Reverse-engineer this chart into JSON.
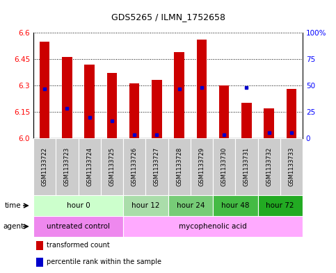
{
  "title": "GDS5265 / ILMN_1752658",
  "samples": [
    "GSM1133722",
    "GSM1133723",
    "GSM1133724",
    "GSM1133725",
    "GSM1133726",
    "GSM1133727",
    "GSM1133728",
    "GSM1133729",
    "GSM1133730",
    "GSM1133731",
    "GSM1133732",
    "GSM1133733"
  ],
  "bar_values": [
    6.55,
    6.46,
    6.42,
    6.37,
    6.31,
    6.33,
    6.49,
    6.56,
    6.3,
    6.2,
    6.17,
    6.28
  ],
  "blue_values": [
    6.28,
    6.17,
    6.12,
    6.1,
    6.02,
    6.02,
    6.28,
    6.29,
    6.02,
    6.29,
    6.03,
    6.03
  ],
  "ymin": 6.0,
  "ymax": 6.6,
  "yticks": [
    6.0,
    6.15,
    6.3,
    6.45,
    6.6
  ],
  "right_yticks": [
    0,
    25,
    50,
    75,
    100
  ],
  "right_yticklabels": [
    "0",
    "25",
    "50",
    "75",
    "100%"
  ],
  "bar_color": "#cc0000",
  "blue_color": "#0000cc",
  "bar_width": 0.45,
  "time_groups": [
    {
      "label": "hour 0",
      "start": 0,
      "end": 4,
      "color": "#ccffcc"
    },
    {
      "label": "hour 12",
      "start": 4,
      "end": 6,
      "color": "#aaddaa"
    },
    {
      "label": "hour 24",
      "start": 6,
      "end": 8,
      "color": "#77cc77"
    },
    {
      "label": "hour 48",
      "start": 8,
      "end": 10,
      "color": "#44bb44"
    },
    {
      "label": "hour 72",
      "start": 10,
      "end": 12,
      "color": "#22aa22"
    }
  ],
  "agent_groups": [
    {
      "label": "untreated control",
      "start": 0,
      "end": 4,
      "color": "#ee88ee"
    },
    {
      "label": "mycophenolic acid",
      "start": 4,
      "end": 12,
      "color": "#ffaaff"
    }
  ],
  "sample_bg": "#cccccc",
  "title_fontsize": 9,
  "tick_fontsize": 7.5,
  "row_fontsize": 7.5,
  "sample_fontsize": 6
}
